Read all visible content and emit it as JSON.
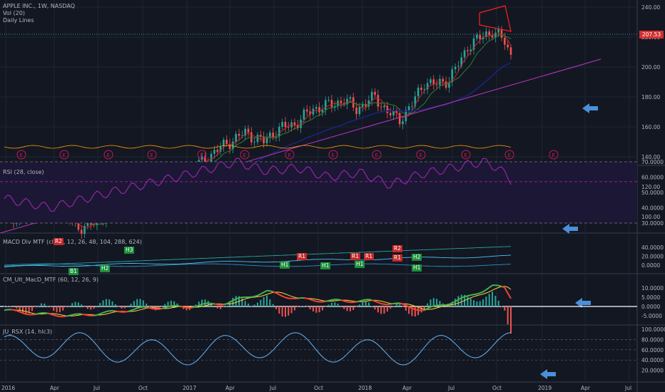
{
  "chart": {
    "title": "APPLE INC., 1W, NASDAQ",
    "indicators": [
      "Vol (20)",
      "Daily Lines"
    ],
    "last_price": "207.53"
  },
  "panes": {
    "rsi": {
      "label": "RSI (28, close)"
    },
    "macd_div": {
      "label": "MACD Div MTF (close, 12, 26, 48, 104, 288, 624)"
    },
    "cm_macd": {
      "label": "CM_Ult_MacD_MTF (60, 12, 26, 9)"
    },
    "rsx": {
      "label": "JU_RSX (14, hlc3)"
    }
  },
  "axes": {
    "price_ticks": [
      "240.00",
      "220.00",
      "200.00",
      "180.00",
      "160.00",
      "140.00",
      "120.00",
      "100.00"
    ],
    "rsi_ticks": [
      "70.0000",
      "60.0000",
      "50.0000",
      "40.0000",
      "30.0000"
    ],
    "macd_div_ticks": [
      "40.0000",
      "20.0000",
      "0.0000"
    ],
    "cm_ticks": [
      "10.0000",
      "5.0000",
      "0.0000",
      "-5.0000"
    ],
    "rsx_ticks": [
      "100.0000",
      "80.0000",
      "60.0000",
      "40.0000",
      "20.0000"
    ],
    "time_ticks": [
      "2016",
      "Apr",
      "Jul",
      "Oct",
      "2017",
      "Apr",
      "Jul",
      "Oct",
      "2018",
      "Apr",
      "Jul",
      "Oct",
      "2019",
      "Apr",
      "Jul"
    ]
  },
  "earnings_marker": "E",
  "macd_div_tags": [
    {
      "text": "H3",
      "color": "green"
    },
    {
      "text": "R2",
      "color": "red"
    },
    {
      "text": "R2",
      "color": "red"
    },
    {
      "text": "R1",
      "color": "red"
    },
    {
      "text": "R1",
      "color": "red"
    },
    {
      "text": "R1",
      "color": "red"
    },
    {
      "text": "R1",
      "color": "red"
    },
    {
      "text": "H2",
      "color": "green"
    },
    {
      "text": "H2",
      "color": "green"
    },
    {
      "text": "H1",
      "color": "green"
    },
    {
      "text": "H1",
      "color": "green"
    },
    {
      "text": "H1",
      "color": "green"
    },
    {
      "text": "H1",
      "color": "green"
    },
    {
      "text": "B1",
      "color": "green"
    }
  ],
  "colors": {
    "background": "#131722",
    "up": "#26a69a",
    "down": "#ef5350",
    "arrow": "#4a90d9"
  }
}
